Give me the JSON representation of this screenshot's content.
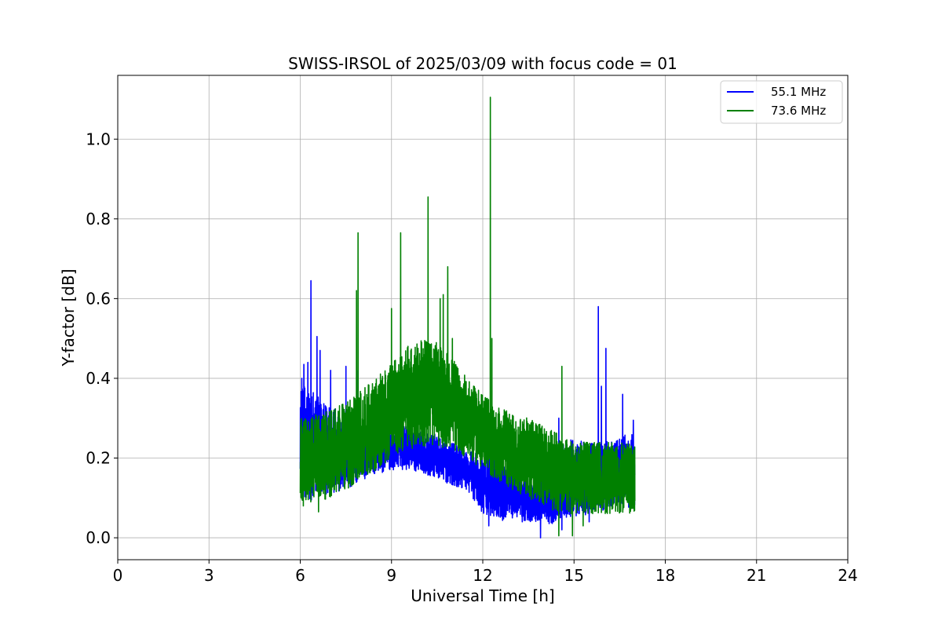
{
  "chart_data": {
    "type": "line",
    "title": "SWISS-IRSOL of 2025/03/09 with focus code = 01",
    "xlabel": "Universal Time [h]",
    "ylabel": "Y-factor [dB]",
    "xlim": [
      0,
      24
    ],
    "ylim": [
      -0.055,
      1.16
    ],
    "xticks": [
      0,
      3,
      6,
      9,
      12,
      15,
      18,
      21,
      24
    ],
    "yticks": [
      0.0,
      0.2,
      0.4,
      0.6,
      0.8,
      1.0
    ],
    "xtick_labels": [
      "0",
      "3",
      "6",
      "9",
      "12",
      "15",
      "18",
      "21",
      "24"
    ],
    "ytick_labels": [
      "0.0",
      "0.2",
      "0.4",
      "0.6",
      "0.8",
      "1.0"
    ],
    "grid": true,
    "legend_position": "top-right",
    "series": [
      {
        "name": "55.1 MHz",
        "color": "#0000ff",
        "envelope": {
          "x": [
            6.0,
            6.25,
            6.5,
            7.0,
            7.5,
            8.0,
            8.5,
            9.0,
            9.5,
            10.0,
            10.5,
            11.0,
            11.5,
            12.0,
            12.5,
            13.0,
            13.5,
            14.0,
            14.5,
            15.0,
            15.5,
            16.0,
            16.5,
            17.0
          ],
          "low": [
            0.1,
            0.09,
            0.1,
            0.11,
            0.12,
            0.14,
            0.16,
            0.17,
            0.17,
            0.16,
            0.15,
            0.13,
            0.12,
            0.06,
            0.04,
            0.05,
            0.04,
            0.03,
            0.04,
            0.05,
            0.06,
            0.07,
            0.08,
            0.07
          ],
          "high": [
            0.39,
            0.38,
            0.36,
            0.33,
            0.31,
            0.3,
            0.28,
            0.28,
            0.28,
            0.27,
            0.26,
            0.24,
            0.22,
            0.21,
            0.19,
            0.17,
            0.16,
            0.15,
            0.23,
            0.25,
            0.24,
            0.24,
            0.25,
            0.28
          ]
        },
        "peaks": [
          {
            "x": 6.05,
            "y": 0.4
          },
          {
            "x": 6.12,
            "y": 0.435
          },
          {
            "x": 6.25,
            "y": 0.44
          },
          {
            "x": 6.35,
            "y": 0.645
          },
          {
            "x": 6.55,
            "y": 0.505
          },
          {
            "x": 6.65,
            "y": 0.47
          },
          {
            "x": 7.0,
            "y": 0.42
          },
          {
            "x": 7.5,
            "y": 0.43
          },
          {
            "x": 7.9,
            "y": 0.42
          },
          {
            "x": 14.5,
            "y": 0.3
          },
          {
            "x": 15.8,
            "y": 0.58
          },
          {
            "x": 15.9,
            "y": 0.38
          },
          {
            "x": 16.05,
            "y": 0.475
          },
          {
            "x": 16.6,
            "y": 0.36
          },
          {
            "x": 16.95,
            "y": 0.295
          }
        ],
        "dips": [
          {
            "x": 12.2,
            "y": 0.03
          },
          {
            "x": 13.3,
            "y": 0.04
          },
          {
            "x": 13.9,
            "y": 0.0
          },
          {
            "x": 14.6,
            "y": 0.02
          },
          {
            "x": 15.5,
            "y": 0.04
          }
        ]
      },
      {
        "name": "73.6 MHz",
        "color": "#008000",
        "envelope": {
          "x": [
            6.0,
            6.5,
            7.0,
            7.5,
            8.0,
            8.5,
            9.0,
            9.5,
            10.0,
            10.5,
            11.0,
            11.5,
            12.0,
            12.5,
            13.0,
            13.5,
            14.0,
            14.5,
            15.0,
            15.5,
            16.0,
            16.5,
            17.0
          ],
          "low": [
            0.09,
            0.09,
            0.1,
            0.12,
            0.14,
            0.17,
            0.2,
            0.22,
            0.23,
            0.23,
            0.22,
            0.2,
            0.17,
            0.14,
            0.12,
            0.1,
            0.08,
            0.06,
            0.06,
            0.06,
            0.06,
            0.06,
            0.06
          ],
          "high": [
            0.3,
            0.31,
            0.32,
            0.34,
            0.37,
            0.4,
            0.44,
            0.48,
            0.5,
            0.49,
            0.45,
            0.4,
            0.36,
            0.33,
            0.31,
            0.3,
            0.28,
            0.26,
            0.25,
            0.24,
            0.24,
            0.24,
            0.24
          ]
        },
        "peaks": [
          {
            "x": 7.85,
            "y": 0.62
          },
          {
            "x": 7.9,
            "y": 0.765
          },
          {
            "x": 9.0,
            "y": 0.575
          },
          {
            "x": 9.3,
            "y": 0.765
          },
          {
            "x": 10.2,
            "y": 0.855
          },
          {
            "x": 10.6,
            "y": 0.6
          },
          {
            "x": 10.7,
            "y": 0.61
          },
          {
            "x": 10.85,
            "y": 0.68
          },
          {
            "x": 11.0,
            "y": 0.5
          },
          {
            "x": 12.25,
            "y": 1.105
          },
          {
            "x": 12.3,
            "y": 0.5
          },
          {
            "x": 14.6,
            "y": 0.43
          }
        ],
        "dips": [
          {
            "x": 6.1,
            "y": 0.08
          },
          {
            "x": 6.6,
            "y": 0.065
          },
          {
            "x": 14.5,
            "y": 0.005
          },
          {
            "x": 14.95,
            "y": 0.005
          },
          {
            "x": 15.3,
            "y": 0.03
          }
        ]
      }
    ]
  }
}
